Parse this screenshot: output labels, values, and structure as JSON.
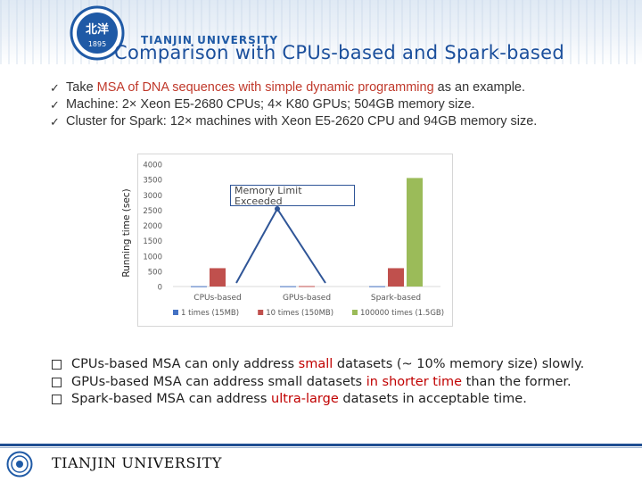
{
  "header": {
    "seal_text_top": "北洋",
    "seal_year": "1895",
    "university_en": "TIANJIN UNIVERSITY",
    "title": "Comparison with CPUs-based and Spark-based"
  },
  "bullets": [
    {
      "pre": "Take ",
      "red": "MSA of DNA sequences with simple dynamic programming",
      "post": " as an example."
    },
    {
      "pre": "Machine: 2× Xeon E5-2680 CPUs; 4× K80 GPUs; 504GB memory size.",
      "red": "",
      "post": ""
    },
    {
      "pre": "Cluster for Spark: 12× machines with Xeon E5-2620 CPU and 94GB memory size.",
      "red": "",
      "post": ""
    }
  ],
  "chart_data": {
    "type": "bar",
    "ylabel": "Running time (sec)",
    "ylim": [
      0,
      4000
    ],
    "yticks": [
      0,
      500,
      1000,
      1500,
      2000,
      2500,
      3000,
      3500,
      4000
    ],
    "categories": [
      "CPUs-based",
      "GPUs-based",
      "Spark-based"
    ],
    "series": [
      {
        "name": "1 times (15MB)",
        "color": "#4472c4",
        "values": [
          10,
          10,
          10
        ]
      },
      {
        "name": "10 times (150MB)",
        "color": "#c0504d",
        "values": [
          600,
          15,
          600
        ]
      },
      {
        "name": "100000 times (1.5GB)",
        "color": "#9bbb59",
        "values": [
          null,
          null,
          3550
        ]
      }
    ],
    "annotation": "Memory Limit Exceeded",
    "annotation_arrow_color": "#2f5597"
  },
  "points": [
    {
      "a": "CPUs-based MSA can only address ",
      "red": "small",
      "b": " datasets (~ 10% memory size) slowly."
    },
    {
      "a": "GPUs-based MSA can address small datasets ",
      "red": "in shorter time",
      "b": " than the former."
    },
    {
      "a": "Spark-based MSA can address ",
      "red": "ultra-large",
      "b": " datasets in acceptable time."
    }
  ],
  "footer": {
    "university": "TIANJIN UNIVERSITY"
  }
}
